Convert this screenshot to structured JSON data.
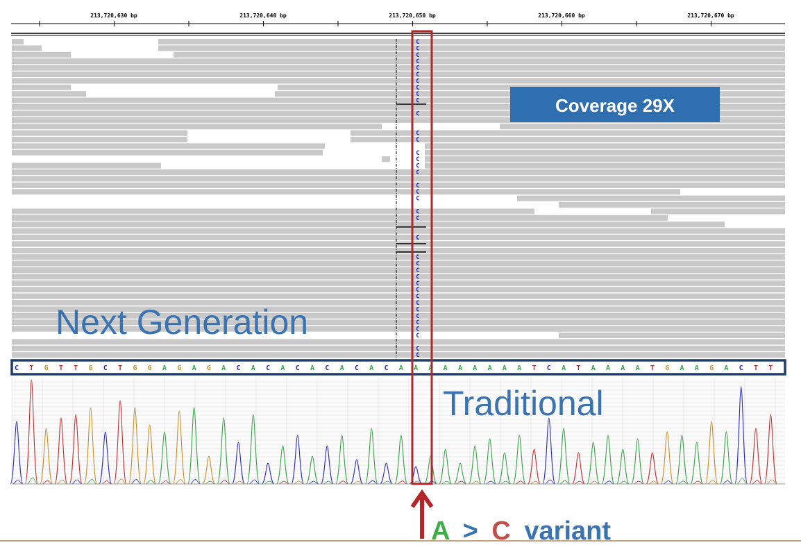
{
  "ruler": {
    "ticks": [
      "213,720,630 bp",
      "213,720,640 bp",
      "213,720,650 bp",
      "213,720,660 bp",
      "213,720,670 bp"
    ]
  },
  "ngs": {
    "label": "Next Generation",
    "coverage_label": "Coverage 29X",
    "variant_base": "C",
    "variant_rows": 49
  },
  "reference": {
    "sequence": "CTGTTGCTGGAGAGACACACACACACAAAAAAAAATCATAAAATGAAGACTT"
  },
  "sanger": {
    "label": "Traditional"
  },
  "variant": {
    "ref": "A",
    "sep": ">",
    "alt": "C",
    "word": "variant"
  },
  "colors": {
    "A": "#3aa24a",
    "C": "#2a2ab8",
    "G": "#c8902a",
    "T": "#c03030",
    "read": "#c9c9c9",
    "highlight": "#b3262a",
    "label_blue": "#3a73b0",
    "coverage_bg": "#2f6fb0",
    "ref_frame": "#1f3d6b",
    "variant_A": "#3fae49",
    "variant_C": "#c0504d",
    "variant_word": "#3a73b0"
  }
}
